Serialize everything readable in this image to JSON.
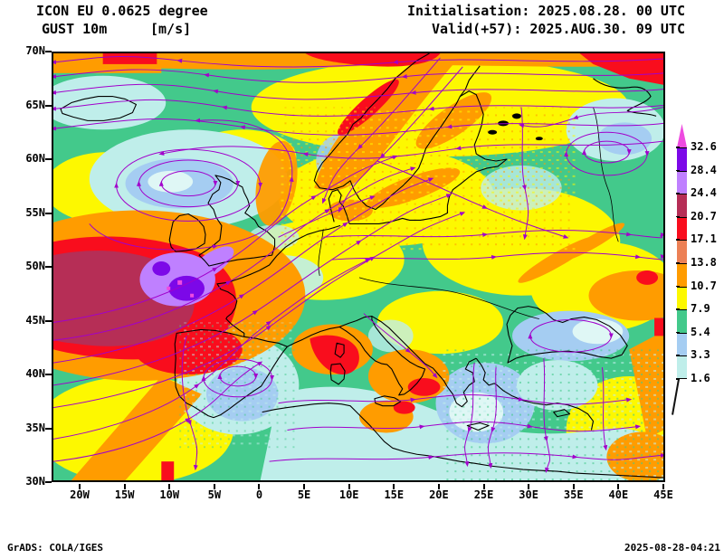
{
  "header": {
    "model_title": "ICON EU 0.0625 degree",
    "variable": "GUST 10m",
    "units": "[m/s]",
    "initialisation": "Initialisation: 2025.08.28. 00 UTC",
    "valid": "Valid(+57): 2025.AUG.30. 09 UTC"
  },
  "axes": {
    "lat_labels": [
      "70N",
      "65N",
      "60N",
      "55N",
      "50N",
      "45N",
      "40N",
      "35N",
      "30N"
    ],
    "lon_labels": [
      "20W",
      "15W",
      "10W",
      "5W",
      "0",
      "5E",
      "10E",
      "15E",
      "20E",
      "25E",
      "30E",
      "35E",
      "40E",
      "45E"
    ]
  },
  "colorbar": {
    "levels": [
      "32.6",
      "28.4",
      "24.4",
      "20.7",
      "17.1",
      "13.8",
      "10.7",
      "7.9",
      "5.4",
      "3.3",
      "1.6"
    ],
    "arrow_color": "#ee4be0",
    "segment_colors": [
      "#7c08e8",
      "#bf80ff",
      "#b62e56",
      "#f90d1d",
      "#ec8055",
      "#ff9c00",
      "#fdf800",
      "#43c98b",
      "#a5cdf2",
      "#bfeeea"
    ]
  },
  "map": {
    "streamline_color": "#a100cb",
    "coastline_color": "#000000"
  },
  "footer": {
    "left": "GrADS: COLA/IGES",
    "right": "2025-08-28-04:21"
  }
}
